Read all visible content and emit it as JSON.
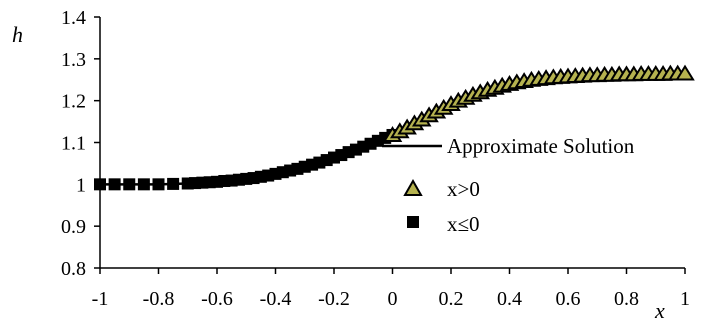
{
  "chart_data": {
    "type": "scatter",
    "xlabel": "x",
    "ylabel": "h",
    "xlim": [
      -1,
      1
    ],
    "ylim": [
      0.8,
      1.4
    ],
    "x_ticks": [
      "-1",
      "-0.8",
      "-0.6",
      "-0.4",
      "-0.2",
      "0",
      "0.2",
      "0.4",
      "0.6",
      "0.8",
      "1"
    ],
    "y_ticks": [
      "0.8",
      "0.9",
      "1",
      "1.1",
      "1.2",
      "1.3",
      "1.4"
    ],
    "grid": false,
    "legend_position": "right",
    "series": [
      {
        "name": "Approximate Solution",
        "kind": "line",
        "color": "#000000",
        "x": [
          -1.0,
          -0.9,
          -0.8,
          -0.7,
          -0.6,
          -0.5,
          -0.4,
          -0.3,
          -0.2,
          -0.1,
          0.0,
          0.1,
          0.2,
          0.3,
          0.4,
          0.5,
          0.6,
          0.7,
          0.8,
          0.9,
          1.0
        ],
        "y": [
          1.0,
          1.0,
          1.0,
          1.002,
          1.006,
          1.013,
          1.025,
          1.042,
          1.064,
          1.09,
          1.118,
          1.152,
          1.19,
          1.222,
          1.242,
          1.253,
          1.258,
          1.261,
          1.263,
          1.264,
          1.265
        ]
      },
      {
        "name": "x>0",
        "kind": "triangle",
        "color": "#b5b24f",
        "x": [
          0.0,
          0.025,
          0.05,
          0.075,
          0.1,
          0.125,
          0.15,
          0.175,
          0.2,
          0.225,
          0.25,
          0.275,
          0.3,
          0.325,
          0.35,
          0.375,
          0.4,
          0.425,
          0.45,
          0.475,
          0.5,
          0.525,
          0.55,
          0.575,
          0.6,
          0.625,
          0.65,
          0.675,
          0.7,
          0.725,
          0.75,
          0.775,
          0.8,
          0.825,
          0.85,
          0.875,
          0.9,
          0.925,
          0.95,
          0.975,
          1.0
        ],
        "y": [
          1.118,
          1.127,
          1.136,
          1.146,
          1.155,
          1.165,
          1.174,
          1.183,
          1.192,
          1.2,
          1.207,
          1.214,
          1.22,
          1.226,
          1.231,
          1.236,
          1.24,
          1.244,
          1.247,
          1.25,
          1.252,
          1.254,
          1.256,
          1.257,
          1.258,
          1.259,
          1.26,
          1.261,
          1.261,
          1.262,
          1.262,
          1.263,
          1.263,
          1.263,
          1.264,
          1.264,
          1.264,
          1.264,
          1.265,
          1.265,
          1.265
        ]
      },
      {
        "name": "x≤0",
        "kind": "square",
        "color": "#000000",
        "x": [
          -1.0,
          -0.95,
          -0.9,
          -0.85,
          -0.8,
          -0.75,
          -0.7,
          -0.675,
          -0.65,
          -0.625,
          -0.6,
          -0.575,
          -0.55,
          -0.525,
          -0.5,
          -0.475,
          -0.45,
          -0.425,
          -0.4,
          -0.375,
          -0.35,
          -0.325,
          -0.3,
          -0.275,
          -0.25,
          -0.225,
          -0.2,
          -0.175,
          -0.15,
          -0.125,
          -0.1,
          -0.075,
          -0.05,
          -0.025,
          0.0
        ],
        "y": [
          1.0,
          1.0,
          1.0,
          1.0,
          1.0,
          1.001,
          1.002,
          1.003,
          1.004,
          1.005,
          1.006,
          1.008,
          1.009,
          1.011,
          1.013,
          1.015,
          1.018,
          1.021,
          1.025,
          1.029,
          1.033,
          1.037,
          1.042,
          1.047,
          1.052,
          1.058,
          1.064,
          1.07,
          1.077,
          1.083,
          1.09,
          1.097,
          1.104,
          1.111,
          1.118
        ]
      }
    ]
  }
}
